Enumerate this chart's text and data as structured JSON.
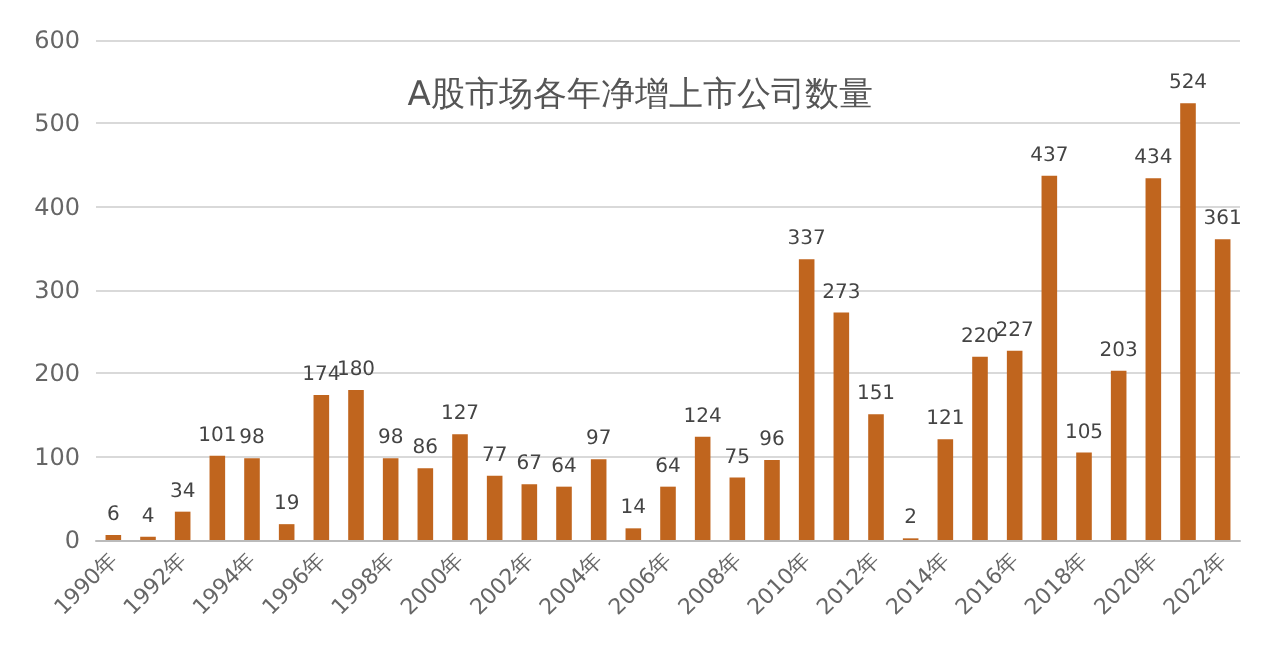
{
  "chart_data": {
    "type": "bar",
    "title": "A股市场各年净增上市公司数量",
    "categories": [
      "1990年",
      null,
      "1992年",
      null,
      "1994年",
      null,
      "1996年",
      null,
      "1998年",
      null,
      "2000年",
      null,
      "2002年",
      null,
      "2004年",
      null,
      "2006年",
      null,
      "2008年",
      null,
      "2010年",
      null,
      "2012年",
      null,
      "2014年",
      null,
      "2016年",
      null,
      "2018年",
      null,
      "2020年",
      null,
      "2022年"
    ],
    "values": [
      6,
      4,
      34,
      101,
      98,
      19,
      174,
      180,
      98,
      86,
      127,
      77,
      67,
      64,
      97,
      14,
      64,
      124,
      75,
      96,
      337,
      273,
      151,
      2,
      121,
      220,
      227,
      437,
      105,
      203,
      434,
      524,
      361
    ],
    "color": "#c0651e",
    "ylim": [
      0,
      600
    ],
    "yticks": [
      0,
      100,
      200,
      300,
      400,
      500,
      600
    ],
    "grid": "y",
    "data_labels": true
  }
}
